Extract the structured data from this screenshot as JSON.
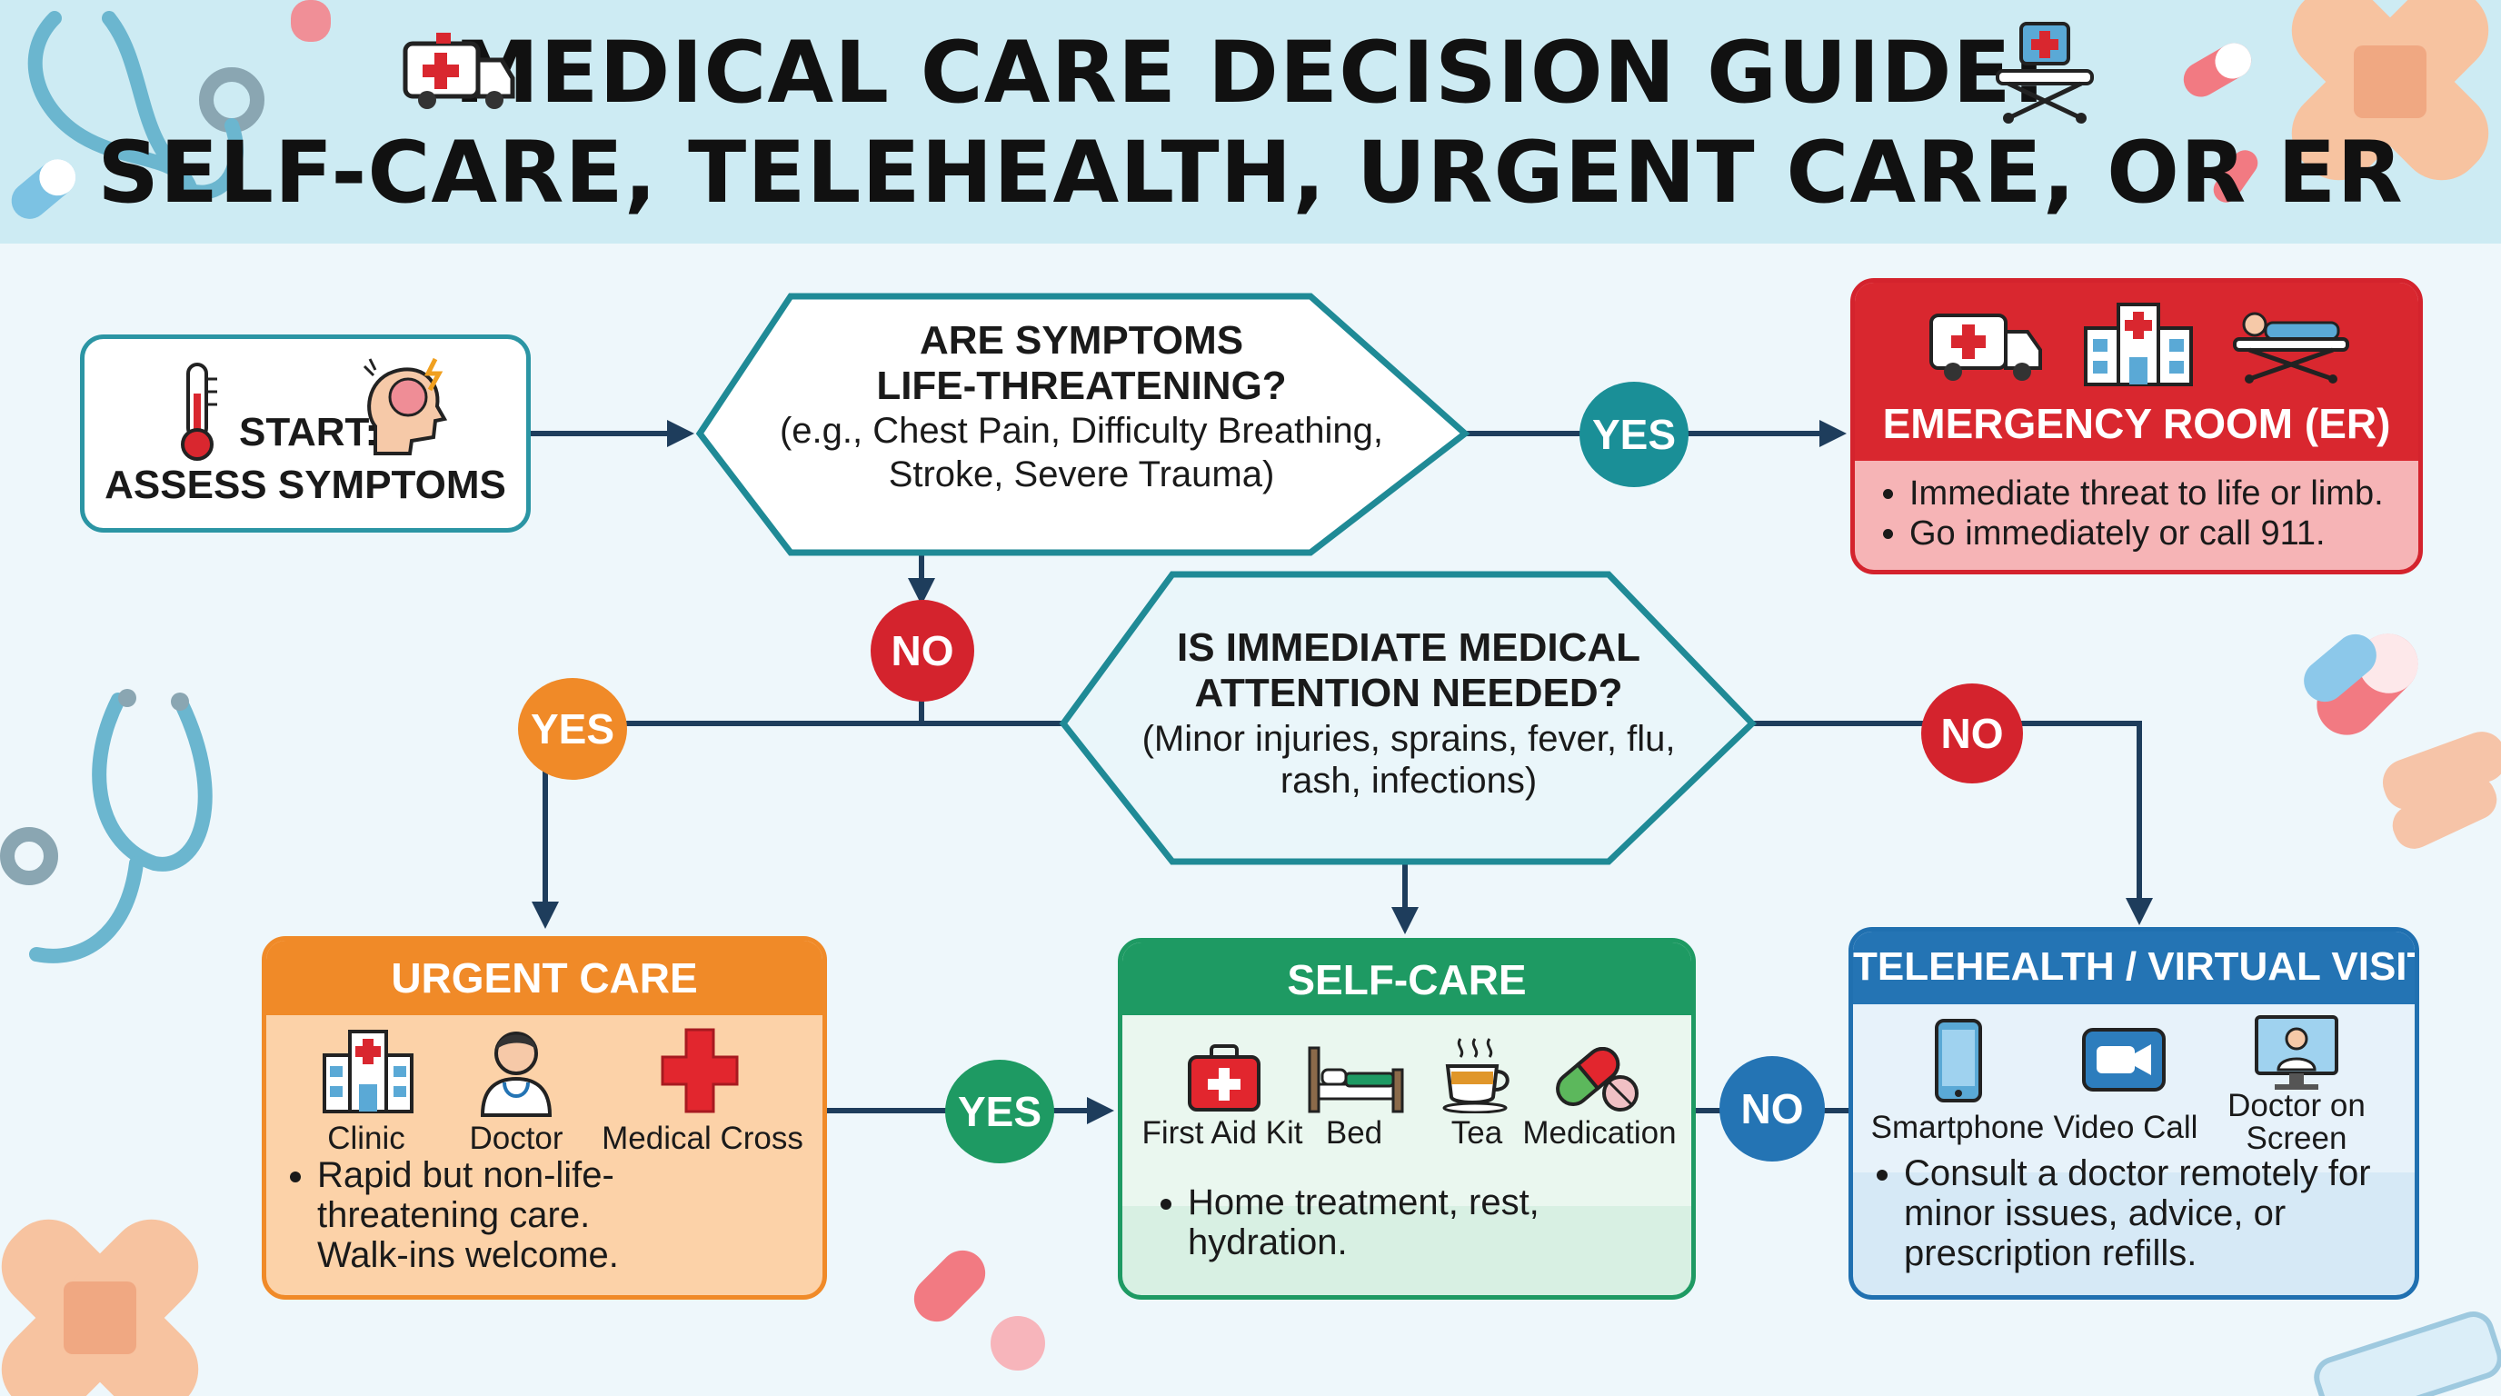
{
  "title": {
    "line1": "MEDICAL CARE DECISION GUIDE:",
    "line2": "SELF-CARE, TELEHEALTH, URGENT CARE, OR ER"
  },
  "start": {
    "line1": "START:",
    "line2": "ASSESS SYMPTOMS",
    "icons": [
      "thermometer-icon",
      "head-pain-icon"
    ]
  },
  "decision1": {
    "line1": "ARE SYMPTOMS",
    "line2": "LIFE-THREATENING?",
    "line3": "(e.g., Chest Pain, Difficulty Breathing,",
    "line4": "Stroke, Severe Trauma)"
  },
  "decision2": {
    "line1": "IS IMMEDIATE MEDICAL",
    "line2": "ATTENTION NEEDED?",
    "line3": "(Minor injuries, sprains, fever, flu,",
    "line4": "rash, infections)"
  },
  "labels": {
    "yes": "YES",
    "no": "NO"
  },
  "er": {
    "title": "EMERGENCY ROOM (ER)",
    "bullets": [
      "Immediate threat to life or limb.",
      "Go immediately or call 911."
    ],
    "icons": [
      "ambulance-icon",
      "hospital-icon",
      "stretcher-icon"
    ]
  },
  "urgent_care": {
    "title": "URGENT CARE",
    "icons": [
      {
        "name": "clinic-icon",
        "label": "Clinic"
      },
      {
        "name": "doctor-icon",
        "label": "Doctor"
      },
      {
        "name": "medical-cross-icon",
        "label": "Medical Cross"
      }
    ],
    "bullet_lines": [
      "Rapid but non-life-",
      "threatening care.",
      "Walk-ins welcome."
    ]
  },
  "self_care": {
    "title": "SELF-CARE",
    "icons": [
      {
        "name": "first-aid-kit-icon",
        "label": "First Aid Kit"
      },
      {
        "name": "bed-icon",
        "label": "Bed"
      },
      {
        "name": "tea-icon",
        "label": "Tea"
      },
      {
        "name": "medication-icon",
        "label": "Medication"
      }
    ],
    "bullet_lines": [
      "Home treatment, rest,",
      "hydration."
    ]
  },
  "telehealth": {
    "title": "TELEHEALTH / VIRTUAL VISIT",
    "icons": [
      {
        "name": "smartphone-icon",
        "label": "Smartphone"
      },
      {
        "name": "video-call-icon",
        "label": "Video Call"
      },
      {
        "name": "doctor-on-screen-icon",
        "label_line1": "Doctor on",
        "label_line2": "Screen"
      }
    ],
    "bullet_lines": [
      "Consult a doctor remotely for",
      "minor issues, advice, or",
      "prescription refills."
    ]
  },
  "colors": {
    "header_bg": "#cdebf3",
    "teal": "#2b95a4",
    "arrow": "#1e3d5c",
    "er_red": "#d9272f",
    "urgent_orange": "#f08a28",
    "selfcare_green": "#1e9a63",
    "telehealth_blue": "#2474b4",
    "yes_teal": "#1a8f97"
  },
  "decorations": [
    "stethoscope-icon",
    "pill-icon",
    "bandage-icon"
  ]
}
